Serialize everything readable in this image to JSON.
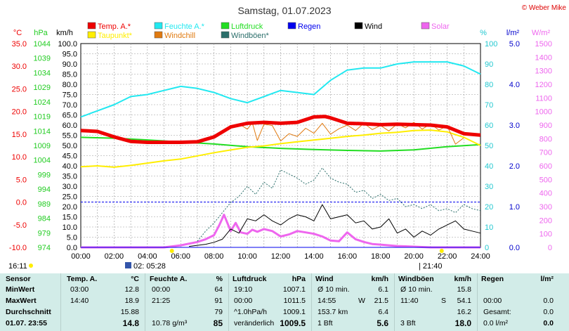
{
  "header": {
    "title": "Samstag, 01.07.2023",
    "credit": "© Weber Mike"
  },
  "colors": {
    "temp": "#ee0000",
    "dew": "#ffee00",
    "humidity": "#22e8f0",
    "windchill": "#e07a10",
    "pressure": "#22dd22",
    "gust": "#2a6e6a",
    "rain": "#0000ee",
    "wind": "#000000",
    "solar": "#ee66ee",
    "bg": "#d2ece8"
  },
  "legend": [
    {
      "label": "Temp. A.*",
      "color": "#ee0000",
      "color_key": "temp",
      "col": 0,
      "row": 0
    },
    {
      "label": "Taupunkt*",
      "color": "#ffee00",
      "color_key": "dew",
      "col": 0,
      "row": 1
    },
    {
      "label": "Feuchte A.*",
      "color": "#22e8f0",
      "color_key": "humidity",
      "col": 1,
      "row": 0
    },
    {
      "label": "Windchill",
      "color": "#e07a10",
      "color_key": "windchill",
      "col": 1,
      "row": 1
    },
    {
      "label": "Luftdruck",
      "color": "#22dd22",
      "color_key": "pressure",
      "col": 2,
      "row": 0
    },
    {
      "label": "Windböen*",
      "color": "#2a6e6a",
      "color_key": "gust",
      "col": 2,
      "row": 1
    },
    {
      "label": "Regen",
      "color": "#0000ee",
      "color_key": "rain",
      "col": 3,
      "row": 0
    },
    {
      "label": "Wind",
      "color": "#000000",
      "color_key": "wind",
      "col": 4,
      "row": 0
    },
    {
      "label": "Solar",
      "color": "#ee66ee",
      "color_key": "solar",
      "col": 5,
      "row": 0
    }
  ],
  "chart_data": {
    "type": "line",
    "title": "Samstag, 01.07.2023",
    "grid": true,
    "x_ticks": [
      "00:00",
      "02:00",
      "04:00",
      "06:00",
      "08:00",
      "10:00",
      "12:00",
      "14:00",
      "16:00",
      "18:00",
      "20:00",
      "22:00",
      "24:00"
    ],
    "axes": {
      "temp": {
        "label": "°C",
        "ticks": [
          "35.0",
          "30.0",
          "25.0",
          "20.0",
          "15.0",
          "10.0",
          "5.0",
          "0.0",
          "-5.0",
          "-10.0"
        ],
        "color": "#ee0000",
        "range": [
          -10,
          35
        ]
      },
      "pressure": {
        "label": "hPa",
        "ticks": [
          "1044",
          "1039",
          "1034",
          "1029",
          "1024",
          "1019",
          "1014",
          "1009",
          "1004",
          "999",
          "994",
          "989",
          "984",
          "979",
          "974"
        ],
        "color": "#22cc22",
        "range": [
          974,
          1044
        ]
      },
      "wind": {
        "label": "km/h",
        "ticks": [
          "100.0",
          "95.0",
          "90.0",
          "85.0",
          "80.0",
          "75.0",
          "70.0",
          "65.0",
          "60.0",
          "55.0",
          "50.0",
          "45.0",
          "40.0",
          "35.0",
          "30.0",
          "25.0",
          "20.0",
          "15.0",
          "10.0",
          "5.0",
          "0.0"
        ],
        "color": "#000000",
        "range": [
          0,
          100
        ]
      },
      "humidity": {
        "label": "%",
        "ticks": [
          "100",
          "90",
          "80",
          "70",
          "60",
          "50",
          "40",
          "30",
          "20",
          "10",
          "0"
        ],
        "color": "#22c8d0",
        "range": [
          0,
          100
        ]
      },
      "rain": {
        "label": "l/m²",
        "ticks": [
          "5.0",
          "4.0",
          "3.0",
          "2.0",
          "1.0",
          "0.0"
        ],
        "color": "#0000cc",
        "range": [
          0,
          5
        ]
      },
      "solar": {
        "label": "W/m²",
        "ticks": [
          "1500",
          "1400",
          "1300",
          "1200",
          "1100",
          "1000",
          "900",
          "800",
          "700",
          "600",
          "500",
          "400",
          "300",
          "200",
          "100",
          "0"
        ],
        "color": "#ee66ee",
        "range": [
          0,
          1500
        ]
      }
    },
    "series": [
      {
        "name": "Temp. A.*",
        "axis": "temp",
        "color_key": "temp",
        "stroke": 5,
        "x": [
          0,
          1,
          2,
          3,
          4,
          5,
          6,
          7,
          8,
          9,
          10,
          11,
          12,
          13,
          14,
          14.67,
          15,
          16,
          17,
          18,
          19,
          20,
          21,
          22,
          23,
          24
        ],
        "y": [
          15.8,
          15.6,
          14.4,
          13.4,
          13.2,
          13.2,
          13.2,
          13.3,
          14.4,
          16.6,
          17.4,
          17.6,
          17.4,
          17.6,
          18.8,
          18.9,
          18.6,
          17.4,
          17.3,
          17.1,
          17.2,
          17.1,
          17.0,
          16.6,
          15.1,
          14.8
        ]
      },
      {
        "name": "Taupunkt*",
        "axis": "temp",
        "color_key": "dew",
        "stroke": 2,
        "x": [
          0,
          1,
          2,
          3,
          4,
          5,
          6,
          7,
          8,
          9,
          10,
          11,
          12,
          13,
          14,
          15,
          16,
          17,
          18,
          19,
          20,
          21,
          22,
          23,
          24
        ],
        "y": [
          7.8,
          8.0,
          7.7,
          8.1,
          8.6,
          9.1,
          9.5,
          10.2,
          10.9,
          11.5,
          12.1,
          12.4,
          12.9,
          13.3,
          13.7,
          14.1,
          14.5,
          14.8,
          15.2,
          15.4,
          15.8,
          15.9,
          15.5,
          14.3,
          12.5
        ]
      },
      {
        "name": "Windchill",
        "axis": "temp",
        "color_key": "windchill",
        "stroke": 1,
        "x": [
          8.5,
          9,
          9.5,
          10,
          10.3,
          10.6,
          11,
          11.5,
          12,
          12.5,
          13,
          13.5,
          14,
          14.5,
          15,
          15.5,
          16,
          16.5,
          17,
          17.5,
          18,
          18.5,
          19,
          19.5,
          20,
          20.5,
          21,
          21.5,
          22,
          22.5,
          23
        ],
        "y": [
          15.2,
          16.5,
          17.3,
          16.1,
          17.5,
          13.6,
          17.2,
          16.9,
          13.5,
          15.1,
          14.5,
          16.3,
          15.2,
          17.4,
          15.0,
          16.2,
          17.0,
          15.8,
          17.4,
          16.0,
          16.9,
          15.7,
          17.3,
          16.4,
          17.6,
          16.1,
          17.3,
          15.9,
          16.8,
          12.8,
          14.2
        ]
      },
      {
        "name": "Feuchte A.*",
        "axis": "humidity",
        "color_key": "humidity",
        "stroke": 2,
        "x": [
          0,
          1,
          2,
          3,
          4,
          5,
          6,
          7,
          8,
          9,
          10,
          11,
          12,
          13,
          14,
          15,
          16,
          17,
          18,
          19,
          20,
          21,
          22,
          23,
          24
        ],
        "y": [
          64,
          67,
          70,
          74,
          75,
          77,
          79,
          78,
          76,
          73,
          71,
          74,
          77,
          76,
          75,
          82,
          87,
          88,
          88,
          90,
          91,
          91,
          91,
          89,
          85
        ]
      },
      {
        "name": "Luftdruck",
        "axis": "pressure",
        "color_key": "pressure",
        "stroke": 2,
        "x": [
          0,
          2,
          4,
          6,
          8,
          10,
          12,
          14,
          16,
          18,
          20,
          22,
          24
        ],
        "y": [
          1011.8,
          1011.5,
          1010.9,
          1010.2,
          1009.5,
          1008.6,
          1008.0,
          1007.6,
          1007.3,
          1007.1,
          1007.5,
          1008.6,
          1009.3
        ]
      },
      {
        "name": "Wind",
        "axis": "wind",
        "color_key": "wind",
        "stroke": 1,
        "x": [
          6.5,
          7,
          7.5,
          8,
          8.5,
          9,
          9.5,
          10,
          10.5,
          11,
          11.5,
          12,
          12.5,
          13,
          13.5,
          14,
          14.5,
          15,
          15.5,
          16,
          16.5,
          17,
          17.5,
          18,
          18.5,
          19,
          19.5,
          20,
          20.5,
          21,
          21.5,
          22,
          22.5,
          23,
          23.5,
          24
        ],
        "y": [
          0.5,
          1,
          1.5,
          2.5,
          4,
          9,
          7,
          14,
          13,
          16,
          13,
          11,
          14,
          16,
          15,
          13,
          21,
          14,
          15,
          16,
          12,
          13,
          9,
          10,
          14,
          7,
          9,
          5,
          8,
          6,
          9,
          11,
          13,
          9,
          8,
          7
        ]
      },
      {
        "name": "Windböen*",
        "axis": "wind",
        "color_key": "gust",
        "stroke": 1,
        "dash": "2,2",
        "x": [
          7,
          7.5,
          8,
          8.5,
          9,
          9.5,
          10,
          10.5,
          11,
          11.5,
          12,
          12.5,
          13,
          13.5,
          14,
          14.5,
          15,
          15.5,
          16,
          16.5,
          17,
          17.5,
          18,
          18.5,
          19,
          19.5,
          20,
          20.5,
          21,
          21.5,
          22,
          22.5,
          23,
          23.5,
          24
        ],
        "y": [
          3,
          8,
          12,
          17,
          22,
          25,
          30,
          26,
          32,
          29,
          38,
          36,
          34,
          31,
          33,
          39,
          34,
          32,
          31,
          27,
          28,
          24,
          26,
          23,
          24,
          20,
          21,
          19,
          21,
          18,
          19,
          17,
          21,
          19,
          18
        ]
      },
      {
        "name": "Solar",
        "axis": "solar",
        "color_key": "solar",
        "stroke": 3,
        "x": [
          0,
          5,
          6,
          7,
          7.5,
          8,
          8.3,
          8.6,
          9,
          9.3,
          9.6,
          10,
          10.3,
          10.6,
          11,
          11.5,
          12,
          12.5,
          13,
          13.5,
          14,
          14.5,
          15,
          15.5,
          16,
          16.5,
          17,
          17.5,
          18,
          18.5,
          19,
          19.5,
          20,
          21,
          22,
          24
        ],
        "y": [
          0,
          0,
          15,
          40,
          60,
          90,
          160,
          240,
          120,
          180,
          110,
          100,
          130,
          115,
          135,
          120,
          80,
          95,
          120,
          110,
          100,
          80,
          50,
          45,
          110,
          60,
          40,
          25,
          20,
          15,
          10,
          8,
          5,
          0,
          0,
          0
        ]
      },
      {
        "name": "Regen",
        "axis": "rain",
        "color_key": "rain",
        "stroke": 1,
        "x": [
          0,
          24
        ],
        "y": [
          0,
          0
        ]
      }
    ],
    "ref_line": {
      "axis": "temp",
      "value": 0,
      "color": "#0000ee"
    }
  },
  "markers": {
    "sunrise": "05:28",
    "sunset": "21:40",
    "start": "16:11"
  },
  "stats": {
    "headers": {
      "sensor": "Sensor",
      "temp": "Temp. A.",
      "temp_unit": "°C",
      "hum": "Feuchte A.",
      "hum_unit": "%",
      "press": "Luftdruck",
      "press_unit": "hPa",
      "wind": "Wind",
      "wind_unit": "km/h",
      "gust": "Windböen",
      "gust_unit": "km/h",
      "rain": "Regen",
      "rain_unit": "l/m²"
    },
    "rows": [
      {
        "label": "MinWert",
        "temp_time": "03:00",
        "temp": "12.8",
        "hum_time": "00:00",
        "hum": "64",
        "press_time": "19:10",
        "press": "1007.1",
        "wind_label": "Ø 10 min.",
        "wind": "6.1",
        "gust_label": "Ø 10 min.",
        "gust": "15.8",
        "rain_label": "",
        "rain": ""
      },
      {
        "label": "MaxWert",
        "temp_time": "14:40",
        "temp": "18.9",
        "hum_time": "21:25",
        "hum": "91",
        "press_time": "00:00",
        "press": "1011.5",
        "wind_label": "14:55",
        "wind_dir": "W",
        "wind": "21.5",
        "gust_label": "11:40",
        "gust_dir": "S",
        "gust": "54.1",
        "rain_label": "00:00",
        "rain": "0.0"
      },
      {
        "label": "Durchschnitt",
        "temp_time": "",
        "temp": "15.88",
        "hum_time": "",
        "hum": "79",
        "press_time": "^1.0hPa/h",
        "press": "1009.1",
        "wind_label": "153.7 km",
        "wind": "6.4",
        "gust_label": "",
        "gust": "16.2",
        "rain_label": "Gesamt:",
        "rain": "0.0"
      },
      {
        "label": "01.07. 23:55",
        "temp_time": "",
        "temp": "14.8",
        "hum_time": "10.78 g/m³",
        "hum": "85",
        "press_time": "veränderlich",
        "press": "1009.5",
        "wind_label": "1 Bft",
        "wind": "5.6",
        "gust_label": "3 Bft",
        "gust": "18.0",
        "rain_label": "0.0 l/m²",
        "rain": "0.0"
      }
    ]
  }
}
